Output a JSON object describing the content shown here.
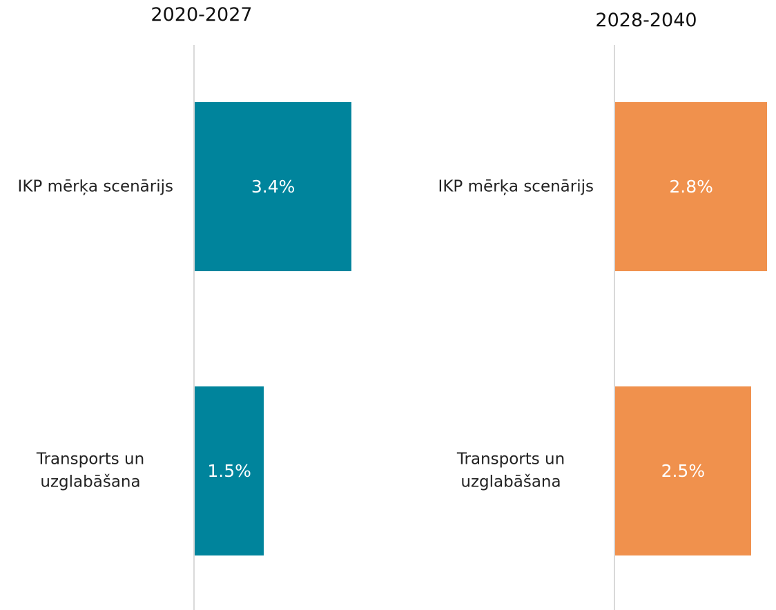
{
  "chart_data": [
    {
      "type": "bar",
      "orientation": "horizontal",
      "title": "2020-2027",
      "categories": [
        "IKP mērķa scenārijs",
        "Transports un uzglabāšana"
      ],
      "values": [
        3.4,
        1.5
      ],
      "value_labels": [
        "3.4%",
        "1.5%"
      ],
      "color": "#00849c",
      "xlim": [
        0,
        3.5
      ]
    },
    {
      "type": "bar",
      "orientation": "horizontal",
      "title": "2028-2040",
      "categories": [
        "IKP mērķa scenārijs",
        "Transports un uzglabāšana"
      ],
      "values": [
        2.8,
        2.5
      ],
      "value_labels": [
        "2.8%",
        "2.5%"
      ],
      "color": "#f0914d",
      "xlim": [
        0,
        3.0
      ]
    }
  ]
}
